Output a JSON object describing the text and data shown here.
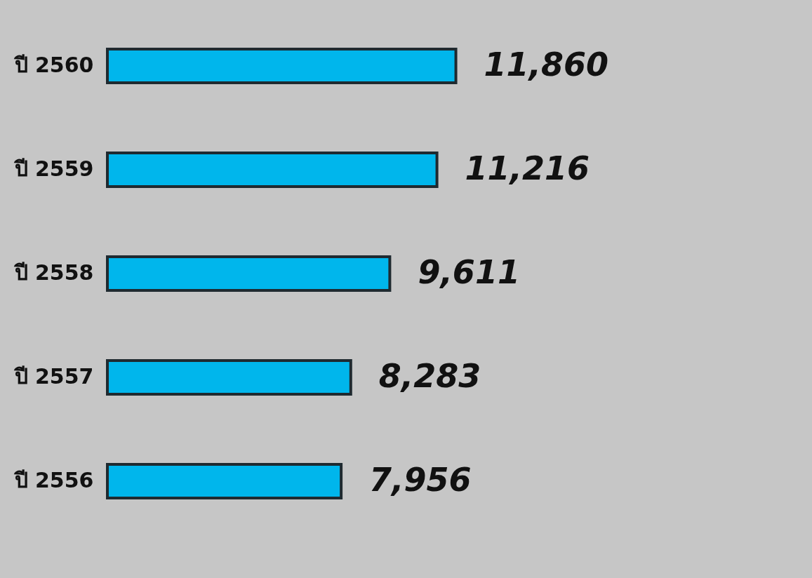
{
  "chart_data": {
    "type": "bar",
    "orientation": "horizontal",
    "categories": [
      "ปี 2560",
      "ปี 2559",
      "ปี 2558",
      "ปี 2557",
      "ปี 2556"
    ],
    "values": [
      11860,
      11216,
      9611,
      8283,
      7956
    ],
    "value_labels": [
      "11,860",
      "11,216",
      "9,611",
      "8,283",
      "7,956"
    ],
    "color": "#00b6ec"
  }
}
